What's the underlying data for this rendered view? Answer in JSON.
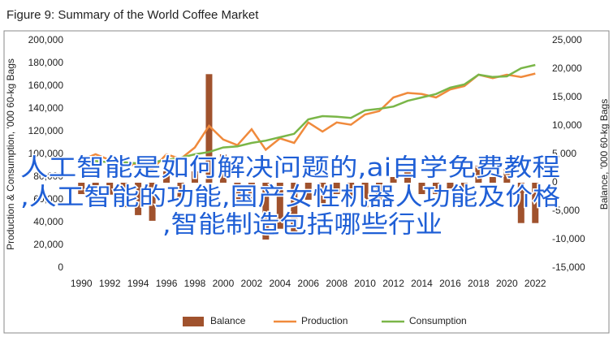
{
  "chart_data": {
    "type": "bar_line",
    "title": "Figure 9: Summary of the World Coffee Market",
    "y_label": "Production & Consumption, '000 60-kg Bags",
    "y2_label": "Balance, '000 60-kg Bags",
    "x": [
      1990,
      1991,
      1992,
      1993,
      1994,
      1995,
      1996,
      1997,
      1998,
      1999,
      2000,
      2001,
      2002,
      2003,
      2004,
      2005,
      2006,
      2007,
      2008,
      2009,
      2010,
      2011,
      2012,
      2013,
      2014,
      2015,
      2016,
      2017,
      2018,
      2019,
      2020,
      2021,
      2022
    ],
    "xlim": [
      1989.3,
      2022.5
    ],
    "xticks": [
      1990,
      1992,
      1994,
      1996,
      1998,
      2000,
      2002,
      2004,
      2006,
      2008,
      2010,
      2012,
      2014,
      2016,
      2018,
      2020,
      2022
    ],
    "ylim": [
      0,
      200000
    ],
    "yticks": [
      0,
      {
        "value": 20000,
        "label": "20,000"
      },
      {
        "value": 40000,
        "label": "40,000"
      },
      {
        "value": 60000,
        "label": "60,000"
      },
      {
        "value": 80000,
        "label": "80,000"
      },
      {
        "value": 100000,
        "label": "100,000"
      },
      {
        "value": 120000,
        "label": "120,000"
      },
      {
        "value": 140000,
        "label": "140,000"
      },
      {
        "value": 160000,
        "label": "160,000"
      },
      {
        "value": 180000,
        "label": "180,000"
      },
      {
        "value": 200000,
        "label": "200,000"
      }
    ],
    "y2lim": [
      -15000,
      25000
    ],
    "y2ticks": [
      {
        "value": -15000,
        "label": "-15,000"
      },
      {
        "value": -10000,
        "label": "-10,000"
      },
      {
        "value": -5000,
        "label": "-5,000"
      },
      0,
      {
        "value": 5000,
        "label": "5,000"
      },
      {
        "value": 10000,
        "label": "10,000"
      },
      {
        "value": 15000,
        "label": "15,000"
      },
      {
        "value": 20000,
        "label": "20,000"
      },
      {
        "value": 25000,
        "label": "25,000"
      }
    ],
    "grid": false,
    "legend": "bottom",
    "series": [
      {
        "name": "Balance",
        "type": "bar",
        "axis": "y2",
        "color": "#a0522d",
        "values": [
          -2000,
          -1500,
          -2100,
          -4300,
          -5700,
          -6700,
          2000,
          -3000,
          2000,
          19100,
          5000,
          -3000,
          -3000,
          -10000,
          -8100,
          -9000,
          -3000,
          -3600,
          -2000,
          -3000,
          -4300,
          -3000,
          1000,
          2000,
          -2000,
          -2000,
          -1000,
          -4000,
          3000,
          1000,
          2500,
          -7100,
          -7100
        ]
      },
      {
        "name": "Production",
        "type": "line",
        "axis": "y",
        "color": "#f08a3c",
        "values": [
          95000,
          100000,
          95000,
          90000,
          91000,
          87000,
          100000,
          96000,
          106000,
          125000,
          113000,
          108000,
          122000,
          104000,
          114000,
          110000,
          128000,
          120000,
          128000,
          126000,
          135000,
          138000,
          150000,
          154000,
          153000,
          150000,
          157000,
          160000,
          170000,
          167000,
          170000,
          168000,
          171000
        ]
      },
      {
        "name": "Consumption",
        "type": "line",
        "axis": "y",
        "color": "#7ab648",
        "values": [
          93000,
          94000,
          93000,
          93000,
          92000,
          93000,
          95000,
          97000,
          100000,
          102000,
          106000,
          107000,
          110000,
          112000,
          115000,
          118000,
          130700,
          133600,
          133000,
          132000,
          138600,
          140000,
          142000,
          147000,
          150000,
          153000,
          158600,
          161400,
          170000,
          168000,
          168600,
          175700,
          178600
        ]
      }
    ],
    "annotations": [
      "人工智能是如何解决问题的,ai自学免费教程",
      ",人工智能的功能,国产女性机器人功能及价格",
      ",智能制造包括哪些行业"
    ]
  }
}
